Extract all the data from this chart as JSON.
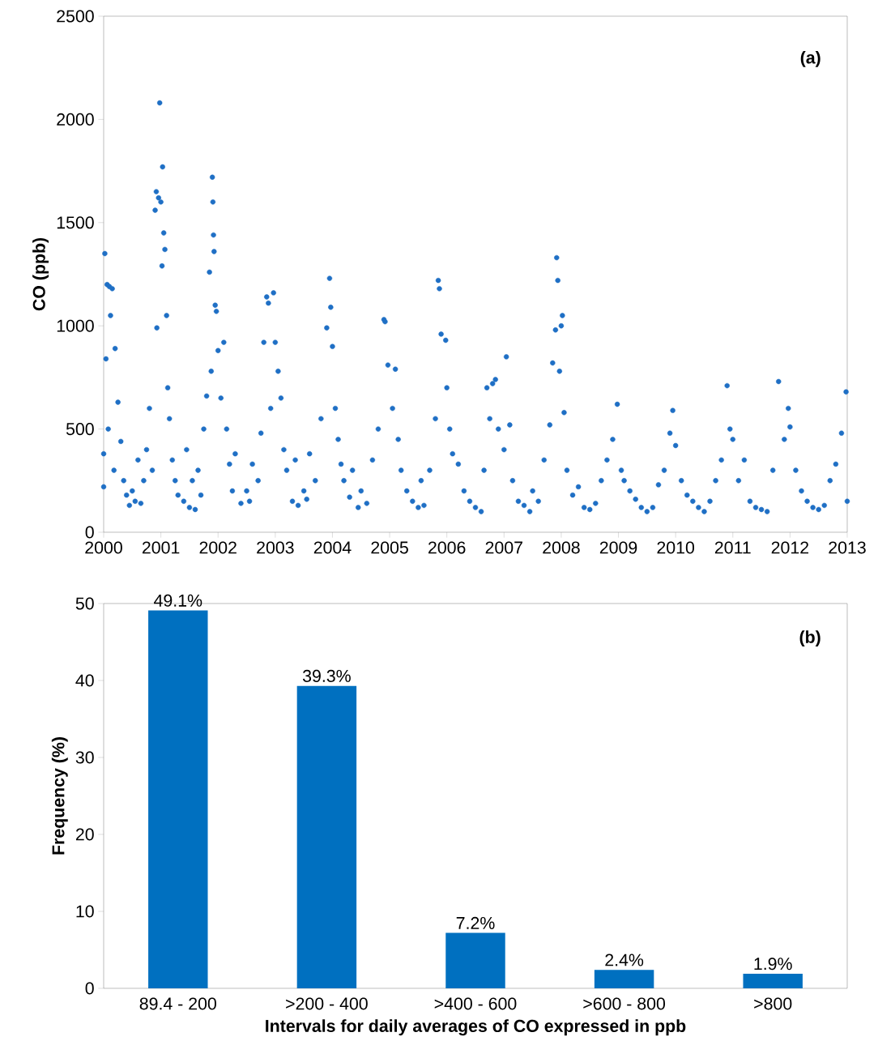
{
  "chart_data": [
    {
      "type": "scatter",
      "ylabel": "CO (ppb)",
      "annotations": [
        "(a)"
      ],
      "color": "#1f6fc5",
      "marker": "circle",
      "xlim": [
        2000,
        2013
      ],
      "xticks": [
        2000,
        2001,
        2002,
        2003,
        2004,
        2005,
        2006,
        2007,
        2008,
        2009,
        2010,
        2011,
        2012,
        2013
      ],
      "ylim": [
        0,
        2500
      ],
      "yticks": [
        0,
        500,
        1000,
        1500,
        2000,
        2500
      ],
      "x": [
        2000.0,
        2000.0,
        2000.02,
        2000.04,
        2000.06,
        2000.08,
        2000.1,
        2000.12,
        2000.15,
        2000.18,
        2000.2,
        2000.25,
        2000.3,
        2000.35,
        2000.4,
        2000.45,
        2000.5,
        2000.55,
        2000.6,
        2000.65,
        2000.7,
        2000.75,
        2000.8,
        2000.85,
        2000.9,
        2000.92,
        2000.93,
        2000.96,
        2000.98,
        2001.0,
        2001.02,
        2001.03,
        2001.05,
        2001.07,
        2001.1,
        2001.12,
        2001.15,
        2001.2,
        2001.25,
        2001.3,
        2001.4,
        2001.45,
        2001.5,
        2001.55,
        2001.6,
        2001.65,
        2001.7,
        2001.75,
        2001.8,
        2001.85,
        2001.88,
        2001.9,
        2001.91,
        2001.92,
        2001.93,
        2001.95,
        2001.97,
        2002.0,
        2002.05,
        2002.1,
        2002.15,
        2002.2,
        2002.25,
        2002.3,
        2002.4,
        2002.5,
        2002.55,
        2002.6,
        2002.7,
        2002.75,
        2002.8,
        2002.85,
        2002.88,
        2002.92,
        2002.97,
        2003.0,
        2003.05,
        2003.1,
        2003.15,
        2003.2,
        2003.3,
        2003.35,
        2003.4,
        2003.5,
        2003.55,
        2003.6,
        2003.7,
        2003.8,
        2003.9,
        2003.95,
        2003.97,
        2004.0,
        2004.05,
        2004.1,
        2004.15,
        2004.2,
        2004.3,
        2004.35,
        2004.45,
        2004.5,
        2004.6,
        2004.7,
        2004.8,
        2004.9,
        2004.92,
        2004.97,
        2005.05,
        2005.1,
        2005.15,
        2005.2,
        2005.3,
        2005.4,
        2005.5,
        2005.55,
        2005.6,
        2005.7,
        2005.8,
        2005.85,
        2005.87,
        2005.9,
        2005.98,
        2006.0,
        2006.05,
        2006.1,
        2006.2,
        2006.3,
        2006.4,
        2006.5,
        2006.6,
        2006.65,
        2006.7,
        2006.75,
        2006.8,
        2006.85,
        2006.9,
        2007.0,
        2007.04,
        2007.1,
        2007.15,
        2007.25,
        2007.35,
        2007.45,
        2007.5,
        2007.6,
        2007.7,
        2007.8,
        2007.85,
        2007.9,
        2007.92,
        2007.94,
        2007.97,
        2008.0,
        2008.02,
        2008.05,
        2008.1,
        2008.2,
        2008.3,
        2008.4,
        2008.5,
        2008.6,
        2008.7,
        2008.8,
        2008.9,
        2008.98,
        2009.05,
        2009.1,
        2009.2,
        2009.3,
        2009.4,
        2009.5,
        2009.6,
        2009.7,
        2009.8,
        2009.9,
        2009.95,
        2010.0,
        2010.1,
        2010.2,
        2010.3,
        2010.4,
        2010.5,
        2010.6,
        2010.7,
        2010.8,
        2010.9,
        2010.95,
        2011.0,
        2011.1,
        2011.2,
        2011.3,
        2011.4,
        2011.5,
        2011.6,
        2011.7,
        2011.8,
        2011.9,
        2011.97,
        2012.0,
        2012.1,
        2012.2,
        2012.3,
        2012.4,
        2012.5,
        2012.6,
        2012.7,
        2012.8,
        2012.9,
        2012.98,
        2013.0
      ],
      "values": [
        380,
        220,
        1350,
        840,
        1200,
        500,
        1190,
        1050,
        1180,
        300,
        890,
        630,
        440,
        250,
        180,
        130,
        200,
        150,
        350,
        140,
        250,
        400,
        600,
        300,
        1560,
        1650,
        990,
        1620,
        2080,
        1600,
        1290,
        1770,
        1450,
        1370,
        1050,
        700,
        550,
        350,
        250,
        180,
        150,
        400,
        120,
        250,
        110,
        300,
        180,
        500,
        660,
        1260,
        780,
        1720,
        1600,
        1440,
        1360,
        1100,
        1070,
        880,
        650,
        920,
        500,
        330,
        200,
        380,
        140,
        200,
        150,
        330,
        250,
        480,
        920,
        1140,
        1110,
        600,
        1160,
        920,
        780,
        650,
        400,
        300,
        150,
        350,
        130,
        200,
        160,
        380,
        250,
        550,
        990,
        1230,
        1090,
        900,
        600,
        450,
        330,
        250,
        170,
        300,
        120,
        200,
        140,
        350,
        500,
        1030,
        1020,
        810,
        600,
        790,
        450,
        300,
        200,
        150,
        120,
        250,
        130,
        300,
        550,
        1220,
        1180,
        960,
        930,
        700,
        500,
        380,
        330,
        200,
        150,
        120,
        100,
        300,
        700,
        550,
        720,
        740,
        500,
        400,
        850,
        520,
        250,
        150,
        130,
        100,
        200,
        150,
        350,
        520,
        820,
        980,
        1330,
        1220,
        780,
        1000,
        1050,
        580,
        300,
        180,
        220,
        120,
        110,
        140,
        250,
        350,
        450,
        620,
        300,
        250,
        200,
        160,
        120,
        100,
        120,
        230,
        300,
        480,
        590,
        420,
        250,
        180,
        150,
        120,
        100,
        150,
        250,
        350,
        710,
        500,
        450,
        250,
        350,
        150,
        120,
        110,
        100,
        300,
        730,
        450,
        600,
        510,
        300,
        200,
        150,
        120,
        110,
        130,
        250,
        330,
        480,
        680,
        150
      ]
    },
    {
      "type": "bar",
      "xlabel": "Intervals for daily averages of CO expressed in ppb",
      "ylabel": "Frequency (%)",
      "annotations": [
        "(b)"
      ],
      "color": "#0070c0",
      "categories": [
        "89.4 - 200",
        ">200 - 400",
        ">400 - 600",
        ">600 - 800",
        ">800"
      ],
      "values": [
        49.1,
        39.3,
        7.2,
        2.4,
        1.9
      ],
      "value_labels": [
        "49.1%",
        "39.3%",
        "7.2%",
        "2.4%",
        "1.9%"
      ],
      "ylim": [
        0,
        50
      ],
      "yticks": [
        0,
        10,
        20,
        30,
        40,
        50
      ]
    }
  ]
}
